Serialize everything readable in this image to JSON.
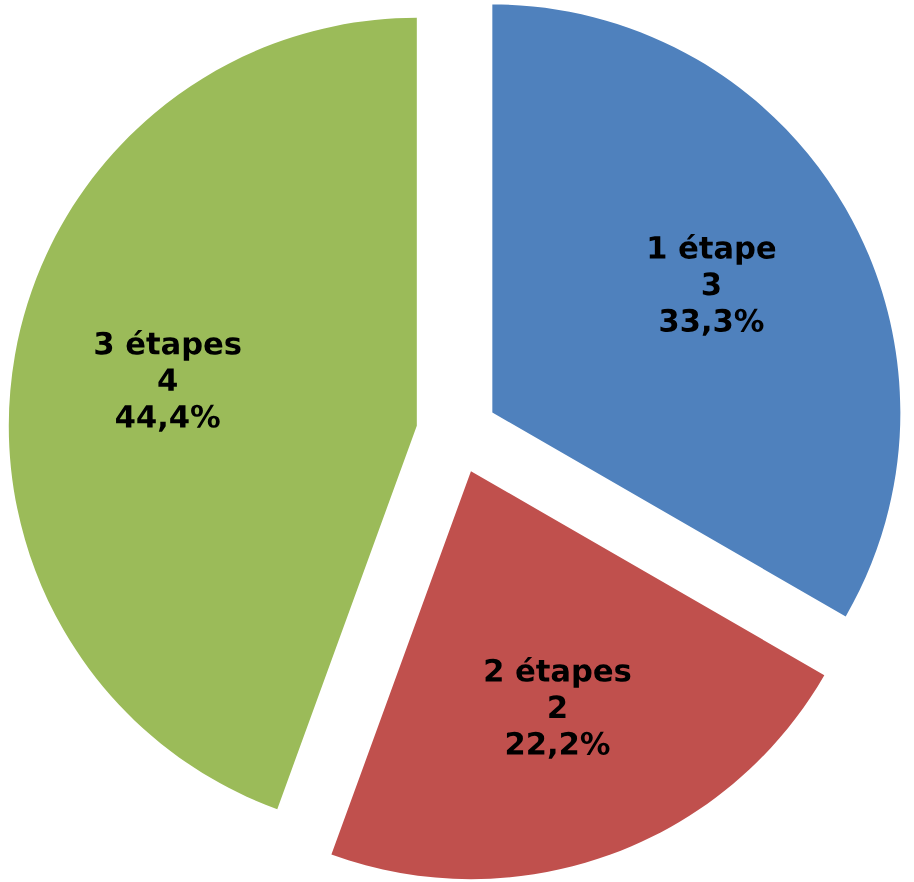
{
  "chart_data": {
    "type": "pie",
    "categories": [
      "1 étape",
      "2 étapes",
      "3 étapes"
    ],
    "values": [
      3,
      2,
      4
    ],
    "colors": [
      "#4f81bd",
      "#c0504d",
      "#9bbb59"
    ],
    "value_labels": [
      "3\n33,3%",
      "2\n22,2%",
      "4\n44,4%"
    ]
  }
}
